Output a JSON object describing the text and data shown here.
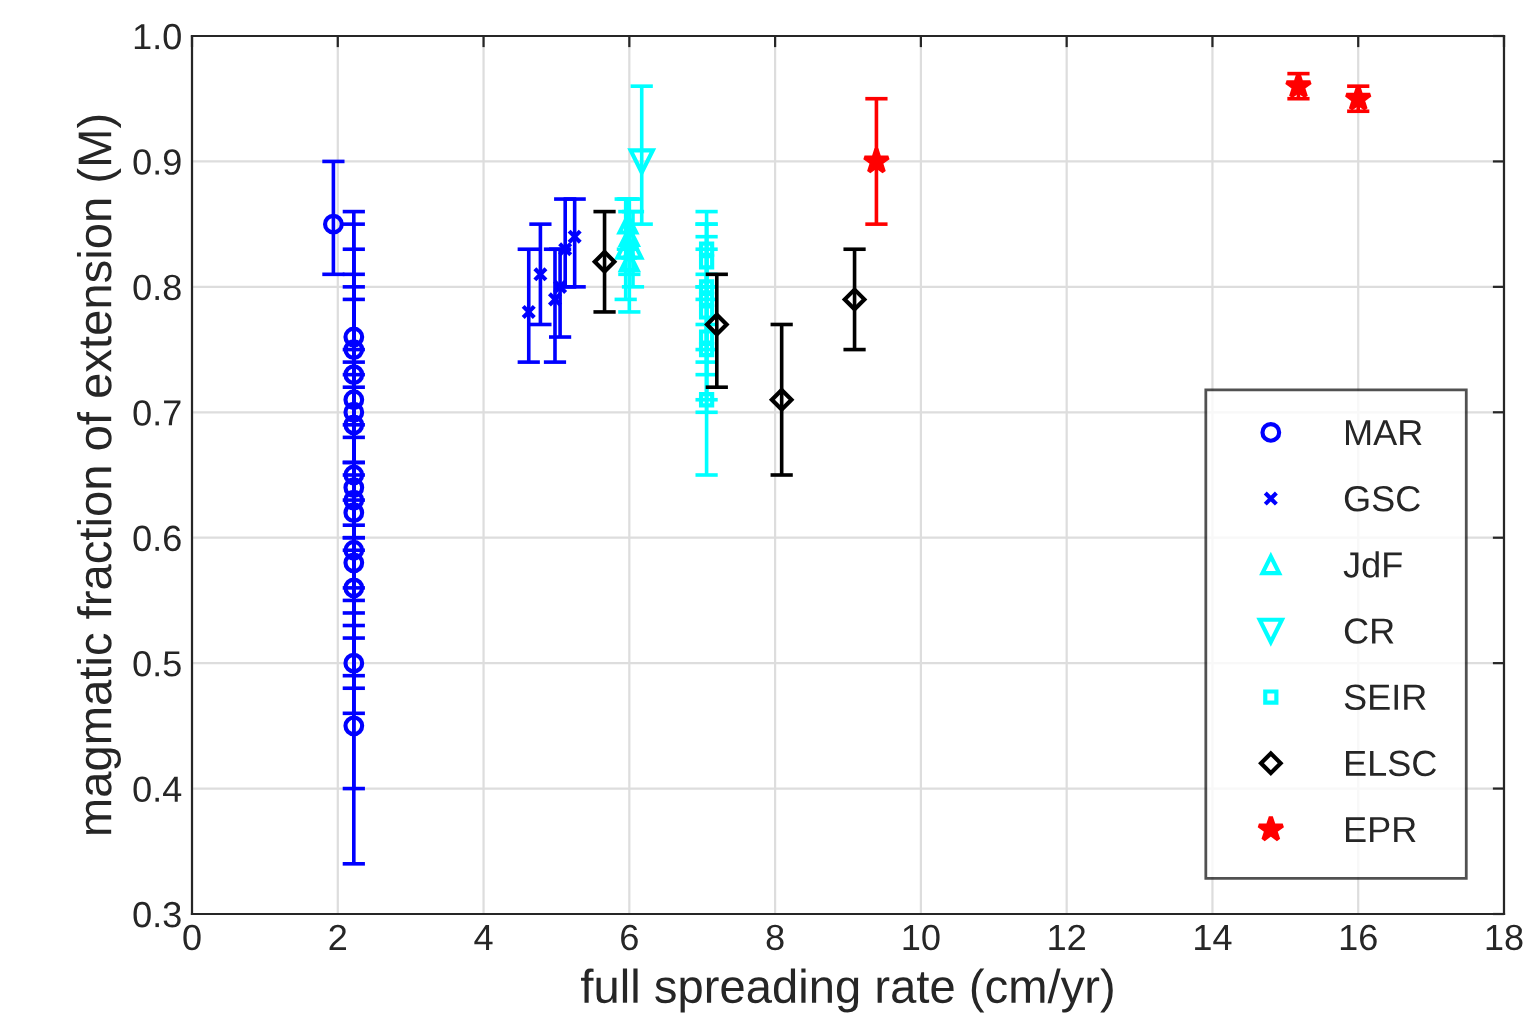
{
  "chart_data": {
    "type": "scatter",
    "xlabel": "full spreading rate (cm/yr)",
    "ylabel": "magmatic fraction of extension (M)",
    "xlim": [
      0,
      18
    ],
    "xticks": [
      0,
      2,
      4,
      6,
      8,
      10,
      12,
      14,
      16,
      18
    ],
    "ylim": [
      0.3,
      1.0
    ],
    "yticks": [
      0.3,
      0.4,
      0.5,
      0.6,
      0.7,
      0.8,
      0.9,
      {
        "value": 1.0,
        "label": "1.0"
      }
    ],
    "grid": true,
    "legend": "bottom right",
    "series": [
      {
        "name": "MAR",
        "color": "#0000ff",
        "marker": "circle",
        "x": [
          1.94,
          2.22,
          2.22,
          2.22,
          2.22,
          2.22,
          2.22,
          2.22,
          2.22,
          2.22,
          2.22,
          2.22,
          2.22,
          2.22,
          2.22,
          2.22
        ],
        "values": [
          0.85,
          0.76,
          0.75,
          0.73,
          0.71,
          0.7,
          0.69,
          0.65,
          0.64,
          0.63,
          0.62,
          0.59,
          0.58,
          0.56,
          0.5,
          0.45
        ],
        "errors": [
          [
            0.81,
            0.9
          ],
          0.1,
          0.1,
          0.1,
          0.1,
          0.1,
          0.1,
          0.1,
          0.1,
          0.1,
          0.1,
          0.1,
          0.1,
          0.1,
          0.1,
          0.11
        ]
      },
      {
        "name": "GSC",
        "color": "#0000ff",
        "marker": "cross",
        "x": [
          4.62,
          4.78,
          4.98,
          5.05,
          5.12,
          5.25
        ],
        "values": [
          0.78,
          0.81,
          0.79,
          0.8,
          0.83,
          0.84
        ],
        "errors": [
          [
            0.74,
            0.83
          ],
          [
            0.77,
            0.85
          ],
          [
            0.74,
            0.83
          ],
          [
            0.76,
            0.83
          ],
          [
            0.8,
            0.87
          ],
          [
            0.8,
            0.87
          ]
        ]
      },
      {
        "name": "JdF",
        "color": "#00ffff",
        "marker": "triangle",
        "x": [
          5.95,
          5.98,
          6.0,
          6.0,
          6.05
        ],
        "values": [
          0.83,
          0.85,
          0.84,
          0.82,
          0.83
        ],
        "errors": [
          [
            0.79,
            0.87
          ],
          [
            0.83,
            0.87
          ],
          [
            0.81,
            0.87
          ],
          [
            0.78,
            0.86
          ],
          [
            0.8,
            0.86
          ]
        ]
      },
      {
        "name": "CR",
        "color": "#00ffff",
        "marker": "triangle_down",
        "x": [
          6.17
        ],
        "values": [
          0.9
        ],
        "errors": [
          [
            0.85,
            0.96
          ]
        ]
      },
      {
        "name": "SEIR",
        "color": "#00ffff",
        "marker": "square",
        "x": [
          7.06,
          7.06,
          7.06,
          7.06,
          7.06,
          7.06,
          7.06,
          7.06
        ],
        "values": [
          0.83,
          0.82,
          0.8,
          0.79,
          0.78,
          0.76,
          0.75,
          0.71
        ],
        "errors": [
          0.03,
          0.03,
          0.05,
          0.05,
          0.05,
          0.05,
          0.05,
          0.06
        ]
      },
      {
        "name": "ELSC",
        "color": "#000000",
        "marker": "diamond",
        "x": [
          5.66,
          7.2,
          8.09,
          9.09
        ],
        "values": [
          0.82,
          0.77,
          0.71,
          0.79
        ],
        "errors": [
          [
            0.78,
            0.86
          ],
          [
            0.72,
            0.81
          ],
          [
            0.65,
            0.77
          ],
          [
            0.75,
            0.83
          ]
        ]
      },
      {
        "name": "EPR",
        "color": "#ff0000",
        "marker": "star",
        "x": [
          9.39,
          15.18,
          16.0
        ],
        "values": [
          0.9,
          0.96,
          0.95
        ],
        "errors": [
          [
            0.85,
            0.95
          ],
          [
            0.95,
            0.97
          ],
          [
            0.94,
            0.96
          ]
        ]
      }
    ]
  }
}
